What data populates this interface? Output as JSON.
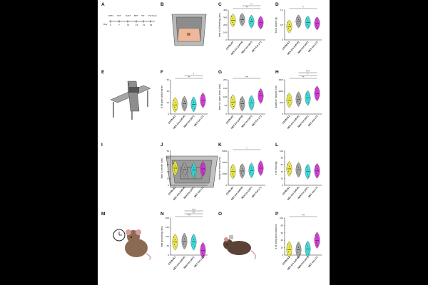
{
  "figure": {
    "background": "#ffffff",
    "panel_letters": [
      "A",
      "B",
      "C",
      "D",
      "E",
      "F",
      "G",
      "H",
      "I",
      "J",
      "K",
      "L",
      "M",
      "N",
      "O",
      "P"
    ]
  },
  "timeline": {
    "events": [
      "EPM",
      "OFT",
      "NaFT",
      "BPT",
      "SIT",
      "Perfusion"
    ],
    "day_label": "Day",
    "ticks": [
      "0",
      "7",
      "14",
      "16",
      "21",
      "23"
    ]
  },
  "groups": [
    "C57BL/6J",
    "NEX-Cre (wt/wt)",
    "NEX-Cre (wt/-)",
    "NEX-Cre (-/-)"
  ],
  "group_colors": [
    "#e8e43a",
    "#9a9a9a",
    "#2fd6d6",
    "#d22bd2"
  ],
  "chart_data": [
    {
      "panel": "C",
      "type": "violin",
      "ylabel": "time until feeding (sec)",
      "ylim": [
        0,
        400
      ],
      "yticks": [
        "0",
        "100",
        "200",
        "300",
        "400"
      ],
      "values": [
        260,
        270,
        245,
        230
      ],
      "significance": [
        "**",
        "**"
      ]
    },
    {
      "panel": "D",
      "type": "violin",
      "ylabel": "food intake (g)",
      "ylim": [
        0,
        1.0
      ],
      "yticks": [
        "0",
        "0.5",
        "1.0"
      ],
      "values": [
        0.45,
        0.62,
        0.58,
        0.55
      ],
      "significance": [
        "*"
      ]
    },
    {
      "panel": "F",
      "type": "violin",
      "ylabel": "# of open arm entries",
      "ylim": [
        0,
        60
      ],
      "yticks": [
        "0",
        "20",
        "40",
        "60"
      ],
      "values": [
        16,
        18,
        17,
        24
      ],
      "significance": [
        "**",
        "*"
      ]
    },
    {
      "panel": "G",
      "type": "violin",
      "ylabel": "time on open arms (sec)",
      "ylim": [
        0,
        200
      ],
      "yticks": [
        "0",
        "50",
        "100",
        "150",
        "200"
      ],
      "values": [
        70,
        60,
        65,
        105
      ],
      "significance": [
        "***"
      ]
    },
    {
      "panel": "H",
      "type": "violin",
      "ylabel": "distance moved (cm)",
      "ylim": [
        0,
        1500
      ],
      "yticks": [
        "0",
        "500",
        "1000",
        "1500"
      ],
      "values": [
        600,
        650,
        700,
        900
      ],
      "significance": [
        "**",
        "*",
        "****"
      ]
    },
    {
      "panel": "J",
      "type": "violin",
      "ylabel": "time in center (sec)",
      "ylim": [
        0,
        50
      ],
      "yticks": [
        "0",
        "10",
        "20",
        "30",
        "40",
        "50"
      ],
      "values": [
        25,
        23,
        22,
        24
      ],
      "significance": []
    },
    {
      "panel": "K",
      "type": "violin",
      "ylabel": "distance moved (cm)",
      "ylim": [
        0,
        6000
      ],
      "yticks": [
        "0",
        "2000",
        "4000",
        "6000"
      ],
      "values": [
        2400,
        2500,
        2600,
        3000
      ],
      "significance": [
        "*"
      ]
    },
    {
      "panel": "L",
      "type": "violin",
      "ylabel": "# of rearings",
      "ylim": [
        0,
        100
      ],
      "yticks": [
        "0",
        "20",
        "40",
        "60",
        "80",
        "100"
      ],
      "values": [
        48,
        45,
        40,
        42
      ],
      "significance": []
    },
    {
      "panel": "N",
      "type": "violin",
      "ylabel": "time grooming (sec)",
      "ylim": [
        0,
        200
      ],
      "yticks": [
        "0",
        "50",
        "100",
        "150",
        "200"
      ],
      "values": [
        70,
        75,
        70,
        25
      ],
      "significance": [
        "***",
        "***",
        "****"
      ]
    },
    {
      "panel": "P",
      "type": "violin",
      "ylabel": "# of body axis rotations",
      "ylim": [
        0,
        100
      ],
      "yticks": [
        "0",
        "20",
        "40",
        "60",
        "80",
        "100"
      ],
      "values": [
        15,
        14,
        16,
        40
      ],
      "significance": [
        "***"
      ]
    }
  ]
}
